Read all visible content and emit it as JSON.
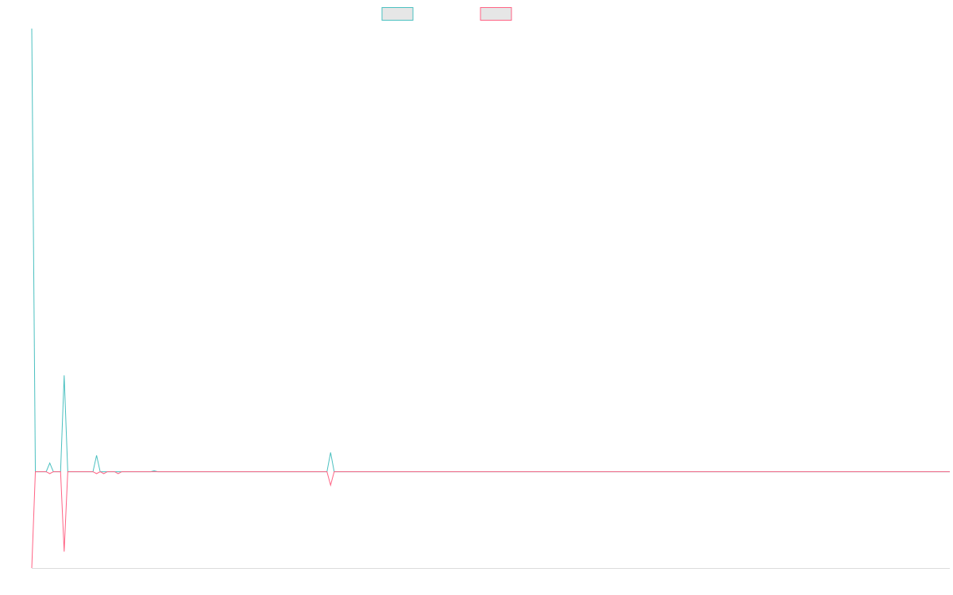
{
  "chart_data": {
    "type": "line",
    "title": "",
    "xlabel": "",
    "ylabel": "",
    "grid": false,
    "legend_position": "top-center",
    "x": [
      0,
      1,
      2,
      3,
      4,
      5,
      6,
      7,
      8,
      9,
      10,
      11,
      12,
      13,
      14,
      15,
      16,
      17,
      18,
      19,
      20,
      21,
      22,
      23,
      24,
      25,
      26,
      27,
      28,
      29,
      30,
      31,
      32,
      33,
      34,
      35,
      36,
      37,
      38,
      39,
      40,
      41,
      42,
      43,
      44,
      45,
      46,
      47,
      48,
      49,
      50,
      51,
      52,
      53,
      54,
      55,
      56,
      57,
      58,
      59,
      60,
      61,
      62,
      63,
      64,
      65,
      66,
      67,
      68,
      69,
      70,
      71,
      72,
      73,
      74,
      75,
      76,
      77,
      78,
      79,
      80,
      81,
      82,
      83,
      84,
      85,
      86,
      87,
      88,
      89,
      90,
      91,
      92,
      93,
      94,
      95,
      96,
      97,
      98,
      99,
      100,
      101,
      102,
      103,
      104,
      105,
      106,
      107,
      108,
      109,
      110,
      111,
      112,
      113,
      114,
      115,
      116,
      117,
      118,
      119,
      120,
      121,
      122,
      123,
      124,
      125,
      126,
      127,
      128,
      129,
      130,
      131,
      132,
      133,
      134,
      135,
      136,
      137,
      138,
      139,
      140,
      141,
      142,
      143,
      144,
      145,
      146,
      147,
      148,
      149,
      150,
      151,
      152,
      153,
      154,
      155,
      156,
      157,
      158,
      159,
      160,
      161,
      162,
      163,
      164,
      165,
      166,
      167,
      168,
      169,
      170,
      171,
      172,
      173,
      174,
      175,
      176,
      177,
      178,
      179,
      180,
      181,
      182,
      183,
      184,
      185,
      186,
      187,
      188,
      189,
      190,
      191,
      192,
      193,
      194,
      195,
      196,
      197,
      198,
      199,
      200,
      201,
      202,
      203,
      204,
      205,
      206,
      207,
      208,
      209,
      210,
      211,
      212,
      213,
      214,
      215,
      216,
      217,
      218,
      219,
      220,
      221,
      222,
      223,
      224,
      225,
      226,
      227,
      228,
      229,
      230,
      231,
      232,
      233,
      234,
      235,
      236,
      237,
      238,
      239,
      240,
      241,
      242,
      243,
      244,
      245,
      246,
      247,
      248,
      249,
      250,
      251,
      252,
      253,
      254,
      255
    ],
    "xlim": [
      0,
      255
    ],
    "ylim": [
      -100,
      460
    ],
    "series": [
      {
        "color": "#4bc0c0",
        "values": [
          460,
          0,
          0,
          0,
          0,
          9,
          0,
          0,
          0,
          100,
          0,
          0,
          0,
          0,
          0,
          0,
          0,
          0,
          17,
          0,
          0,
          0,
          0,
          0,
          0,
          0,
          0,
          0,
          0,
          0,
          0,
          0,
          0,
          0,
          1,
          0,
          0,
          0,
          0,
          0,
          0,
          0,
          0,
          0,
          0,
          0,
          0,
          0,
          0,
          0,
          0,
          0,
          0,
          0,
          0,
          0,
          0,
          0,
          0,
          0,
          0,
          0,
          0,
          0,
          0,
          0,
          0,
          0,
          0,
          0,
          0,
          0,
          0,
          0,
          0,
          0,
          0,
          0,
          0,
          0,
          0,
          0,
          0,
          20,
          0,
          0,
          0,
          0,
          0,
          0,
          0,
          0,
          0,
          0,
          0,
          0,
          0,
          0,
          0,
          0,
          0,
          0,
          0,
          0,
          0,
          0,
          0,
          0,
          0,
          0,
          0,
          0,
          0,
          0,
          0,
          0,
          0,
          0,
          0,
          0,
          0,
          0,
          0,
          0,
          0,
          0,
          0,
          0,
          0,
          0,
          0,
          0,
          0,
          0,
          0,
          0,
          0,
          0,
          0,
          0,
          0,
          0,
          0,
          0,
          0,
          0,
          0,
          0,
          0,
          0,
          0,
          0,
          0,
          0,
          0,
          0,
          0,
          0,
          0,
          0,
          0,
          0,
          0,
          0,
          0,
          0,
          0,
          0,
          0,
          0,
          0,
          0,
          0,
          0,
          0,
          0,
          0,
          0,
          0,
          0,
          0,
          0,
          0,
          0,
          0,
          0,
          0,
          0,
          0,
          0,
          0,
          0,
          0,
          0,
          0,
          0,
          0,
          0,
          0,
          0,
          0,
          0,
          0,
          0,
          0,
          0,
          0,
          0,
          0,
          0,
          0,
          0,
          0,
          0,
          0,
          0,
          0,
          0,
          0,
          0,
          0,
          0,
          0,
          0,
          0,
          0,
          0,
          0,
          0,
          0,
          0,
          0,
          0,
          0,
          0,
          0,
          0,
          0,
          0,
          0,
          0,
          0,
          0,
          0,
          0,
          0,
          0,
          0,
          0,
          0,
          0,
          0,
          0,
          0,
          0,
          0
        ]
      },
      {
        "color": "#ff6384",
        "values": [
          -100,
          0,
          0,
          0,
          0,
          -2,
          0,
          0,
          0,
          -83,
          0,
          0,
          0,
          0,
          0,
          0,
          0,
          0,
          -2,
          0,
          -2,
          0,
          0,
          0,
          -2,
          0,
          0,
          0,
          0,
          0,
          0,
          0,
          0,
          0,
          0,
          0,
          0,
          0,
          0,
          0,
          0,
          0,
          0,
          0,
          0,
          0,
          0,
          0,
          0,
          0,
          0,
          0,
          0,
          0,
          0,
          0,
          0,
          0,
          0,
          0,
          0,
          0,
          0,
          0,
          0,
          0,
          0,
          0,
          0,
          0,
          0,
          0,
          0,
          0,
          0,
          0,
          0,
          0,
          0,
          0,
          0,
          0,
          0,
          -14,
          0,
          0,
          0,
          0,
          0,
          0,
          0,
          0,
          0,
          0,
          0,
          0,
          0,
          0,
          0,
          0,
          0,
          0,
          0,
          0,
          0,
          0,
          0,
          0,
          0,
          0,
          0,
          0,
          0,
          0,
          0,
          0,
          0,
          0,
          0,
          0,
          0,
          0,
          0,
          0,
          0,
          0,
          0,
          0,
          0,
          0,
          0,
          0,
          0,
          0,
          0,
          0,
          0,
          0,
          0,
          0,
          0,
          0,
          0,
          0,
          0,
          0,
          0,
          0,
          0,
          0,
          0,
          0,
          0,
          0,
          0,
          0,
          0,
          0,
          0,
          0,
          0,
          0,
          0,
          0,
          0,
          0,
          0,
          0,
          0,
          0,
          0,
          0,
          0,
          0,
          0,
          0,
          0,
          0,
          0,
          0,
          0,
          0,
          0,
          0,
          0,
          0,
          0,
          0,
          0,
          0,
          0,
          0,
          0,
          0,
          0,
          0,
          0,
          0,
          0,
          0,
          0,
          0,
          0,
          0,
          0,
          0,
          0,
          0,
          0,
          0,
          0,
          0,
          0,
          0,
          0,
          0,
          0,
          0,
          0,
          0,
          0,
          0,
          0,
          0,
          0,
          0,
          0,
          0,
          0,
          0,
          0,
          0,
          0,
          0,
          0,
          0,
          0,
          0,
          0,
          0,
          0,
          0,
          0,
          0,
          0,
          0,
          0,
          0,
          0,
          0,
          0,
          0,
          0,
          0,
          0,
          0
        ]
      }
    ]
  }
}
